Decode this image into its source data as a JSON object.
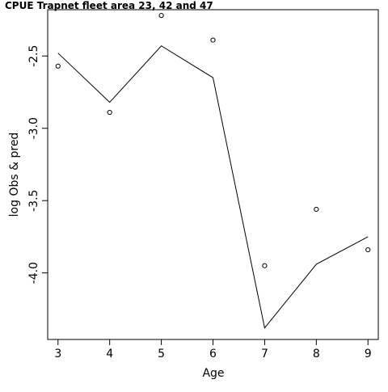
{
  "chart_data": {
    "type": "scatter",
    "title": "CPUE Trapnet fleet area 23, 42 and 47",
    "xlabel": "Age",
    "ylabel": "log Obs & pred",
    "x": [
      3,
      4,
      5,
      6,
      7,
      8,
      9
    ],
    "xlim": [
      2.8,
      9.2
    ],
    "ylim": [
      -4.46,
      -2.18
    ],
    "x_ticks": [
      3,
      4,
      5,
      6,
      7,
      8,
      9
    ],
    "y_ticks": [
      -2.5,
      -3.0,
      -3.5,
      -4.0
    ],
    "y_tick_labels": [
      "-2.5",
      "-3.0",
      "-3.5",
      "-4.0"
    ],
    "series": [
      {
        "role": "observed",
        "marker": "open-circle",
        "values": [
          -2.57,
          -2.89,
          -2.22,
          -2.39,
          -3.95,
          -3.56,
          -3.84
        ]
      },
      {
        "role": "predicted",
        "line": true,
        "values": [
          -2.48,
          -2.82,
          -2.43,
          -2.65,
          -4.38,
          -3.94,
          -3.75
        ]
      }
    ],
    "grid": false,
    "legend": "none",
    "colors": {
      "line": "#000000",
      "points": "#000000",
      "frame": "#000000"
    }
  }
}
